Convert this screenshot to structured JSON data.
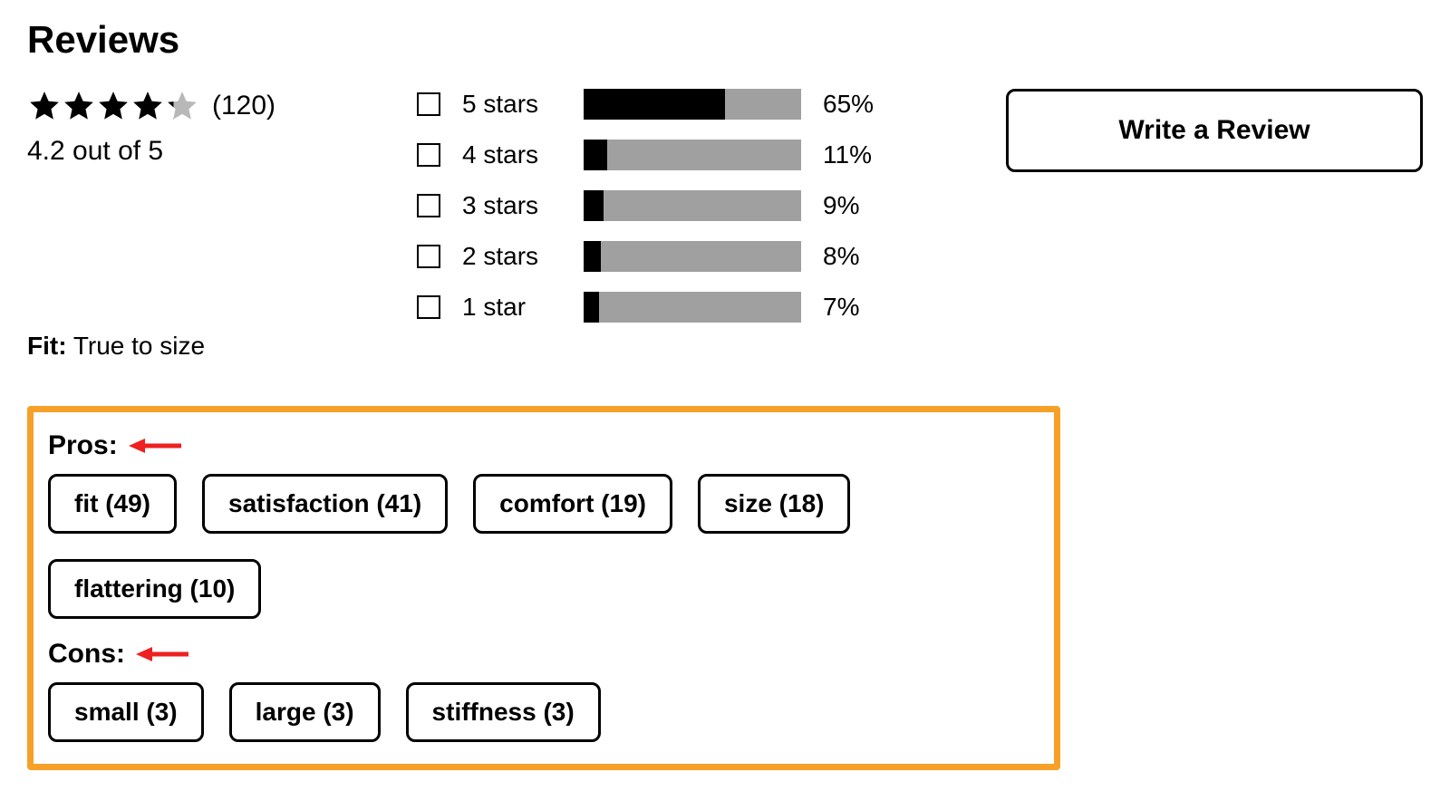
{
  "heading": "Reviews",
  "summary": {
    "rating": 4.2,
    "max_rating": 5,
    "full_stars": 4,
    "partial_star_fill": 0.2,
    "count_text": "(120)",
    "avg_text": "4.2 out of 5",
    "fit_label": "Fit:",
    "fit_value": "True to size"
  },
  "star_colors": {
    "filled": "#000000",
    "empty": "#b8b8b8"
  },
  "breakdown": {
    "bar_bg": "#a0a0a0",
    "bar_fill": "#000000",
    "rows": [
      {
        "label": "5 stars",
        "pct": 65,
        "pct_text": "65%"
      },
      {
        "label": "4 stars",
        "pct": 11,
        "pct_text": "11%"
      },
      {
        "label": "3 stars",
        "pct": 9,
        "pct_text": "9%"
      },
      {
        "label": "2 stars",
        "pct": 8,
        "pct_text": "8%"
      },
      {
        "label": "1 star",
        "pct": 7,
        "pct_text": "7%"
      }
    ]
  },
  "cta": {
    "write_review": "Write a Review"
  },
  "highlight": {
    "border_color": "#f7a028",
    "arrow_color": "#ee2020",
    "pros_label": "Pros:",
    "cons_label": "Cons:",
    "pros": [
      {
        "text": "fit (49)"
      },
      {
        "text": "satisfaction (41)"
      },
      {
        "text": "comfort (19)"
      },
      {
        "text": "size (18)"
      },
      {
        "text": "flattering (10)"
      }
    ],
    "cons": [
      {
        "text": "small (3)"
      },
      {
        "text": "large (3)"
      },
      {
        "text": "stiffness (3)"
      }
    ]
  }
}
